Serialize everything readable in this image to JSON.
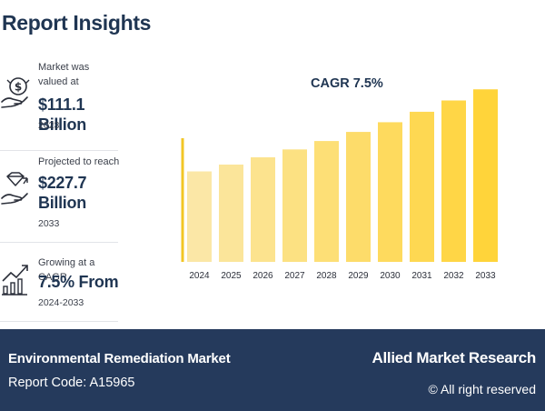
{
  "header": {
    "title": "Report Insights"
  },
  "insights": [
    {
      "label": "Market was valued at",
      "value": "$111.1 Billion",
      "year": "2023",
      "icon": "money-hand-icon"
    },
    {
      "label": "Projected to reach",
      "value": "$227.7 Billion",
      "year": "2033",
      "icon": "diamond-hand-icon"
    },
    {
      "label": "Growing at a CAGR",
      "value": "7.5% From",
      "year": "2024-2033",
      "icon": "growth-bars-icon"
    }
  ],
  "chart_data": {
    "type": "bar",
    "title": "CAGR 7.5%",
    "categories": [
      "2024",
      "2025",
      "2026",
      "2027",
      "2028",
      "2029",
      "2030",
      "2031",
      "2032",
      "2033"
    ],
    "values": [
      119.4,
      128.4,
      138.0,
      148.4,
      159.5,
      171.5,
      184.3,
      198.1,
      213.0,
      227.7
    ],
    "ylim": [
      0,
      240
    ],
    "grid": false,
    "legend": "none",
    "colors": {
      "bar_start": "#fbe7a6",
      "bar_end": "#ffd43a",
      "axis": "#f2c626"
    }
  },
  "footer": {
    "market": "Environmental Remediation Market",
    "report_code": "Report Code: A15965",
    "brand": "Allied Market Research",
    "rights": "© All right reserved"
  }
}
